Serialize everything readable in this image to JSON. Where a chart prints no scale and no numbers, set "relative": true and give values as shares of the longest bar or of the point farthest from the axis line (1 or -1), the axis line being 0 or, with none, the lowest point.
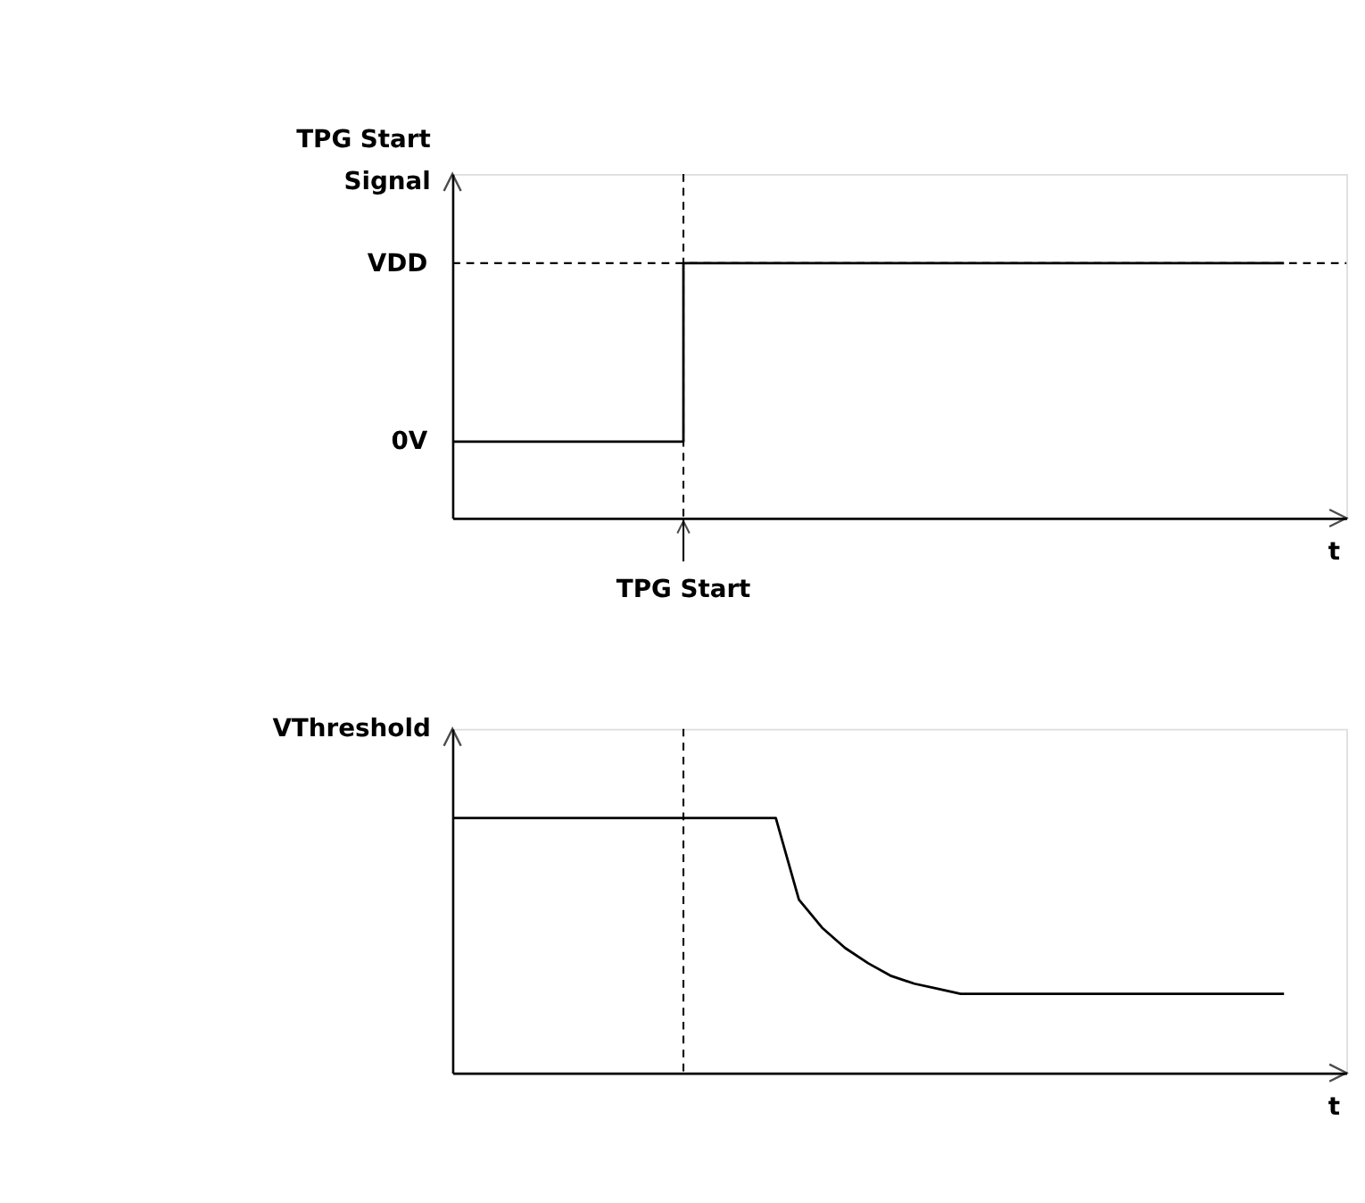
{
  "chart_data": [
    {
      "type": "step",
      "ylabel": "TPG Start Signal",
      "xlabel": "t",
      "relative": true,
      "categories": [
        null,
        null,
        null,
        null,
        null,
        null,
        null,
        null,
        null,
        null,
        null,
        null,
        null,
        null,
        null,
        null,
        null,
        null,
        null,
        null,
        null,
        null,
        null,
        null,
        null,
        null,
        null,
        null,
        null,
        null,
        null,
        null,
        null,
        null,
        null,
        null,
        null
      ],
      "series": [
        {
          "color": "#000000",
          "values": [
            0.3,
            0.3,
            0.3,
            0.3,
            0.3,
            0.3,
            0.3,
            0.3,
            0.3,
            0.3,
            1,
            1,
            1,
            1,
            1,
            1,
            1,
            1,
            1,
            1,
            1,
            1,
            1,
            1,
            1,
            1,
            1,
            1,
            1,
            1,
            1,
            1,
            1,
            1,
            1,
            1,
            1
          ]
        }
      ],
      "ref_lines": [
        {
          "axis": "y",
          "value": 1,
          "label": "VDD",
          "line_style": "dashed",
          "color": "#000000"
        }
      ],
      "annotations": [
        "0V",
        "TPG Start"
      ]
    },
    {
      "type": "line",
      "ylabel": "VThreshold",
      "xlabel": "t",
      "relative": true,
      "categories": [
        null,
        null,
        null,
        null,
        null,
        null,
        null,
        null,
        null,
        null,
        null,
        null,
        null,
        null,
        null,
        null,
        null,
        null,
        null,
        null,
        null,
        null,
        null,
        null,
        null,
        null,
        null,
        null,
        null,
        null,
        null,
        null,
        null,
        null,
        null,
        null,
        null
      ],
      "series": [
        {
          "color": "#000000",
          "values": [
            1,
            1,
            1,
            1,
            1,
            1,
            1,
            1,
            1,
            1,
            1,
            1,
            1,
            1,
            1,
            0.68,
            0.57,
            0.49,
            0.43,
            0.38,
            0.35,
            0.33,
            0.31,
            0.31,
            0.31,
            0.31,
            0.31,
            0.31,
            0.31,
            0.31,
            0.31,
            0.31,
            0.31,
            0.31,
            0.31,
            0.31,
            0.31
          ]
        }
      ]
    }
  ]
}
